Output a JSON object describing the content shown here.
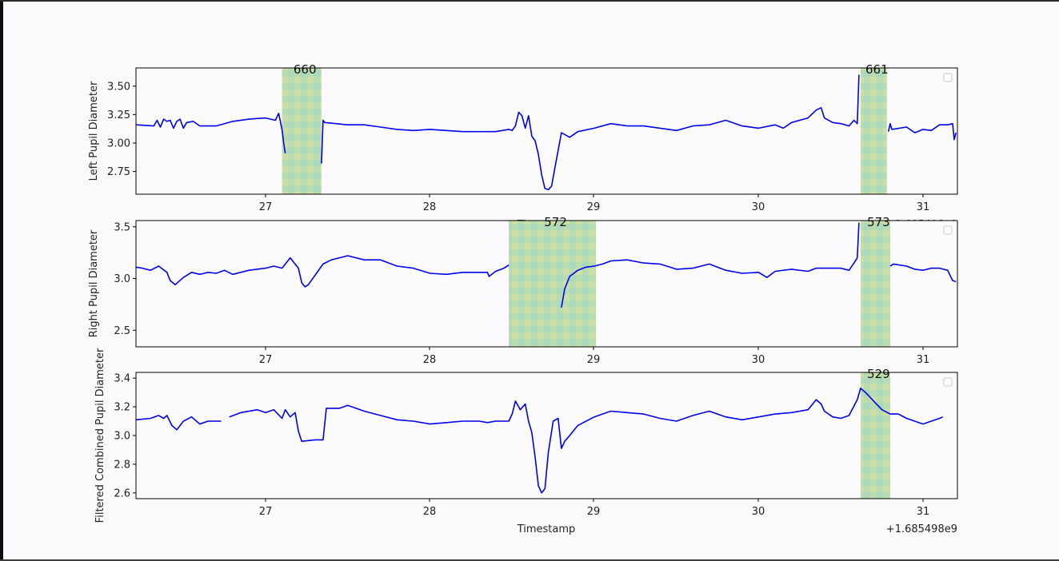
{
  "chart_data": [
    {
      "type": "line",
      "ylabel": "Left Pupil Diameter",
      "xlabel": "Timestamp",
      "offset_text": "+1.685498e9",
      "xlim": [
        26.2,
        31.2
      ],
      "ylim": [
        2.55,
        3.66
      ],
      "xticks": [
        "27",
        "28",
        "29",
        "30",
        "31"
      ],
      "yticks": [
        "2.75",
        "3.00",
        "3.25",
        "3.50"
      ],
      "legend": "top-right",
      "highlights": [
        {
          "label": "660",
          "x0": 27.1,
          "x1": 27.34
        },
        {
          "label": "661",
          "x0": 30.62,
          "x1": 30.78
        }
      ],
      "series": [
        {
          "color": "#0000ee",
          "x": [
            26.2,
            26.32,
            26.34,
            26.36,
            26.38,
            26.4,
            26.42,
            26.44,
            26.46,
            26.48,
            26.5,
            26.52,
            26.56,
            26.6,
            26.7,
            26.8,
            26.9,
            27.0,
            27.06,
            27.08,
            27.1,
            27.11,
            27.12
          ],
          "values": [
            3.16,
            3.15,
            3.2,
            3.14,
            3.21,
            3.19,
            3.2,
            3.13,
            3.19,
            3.21,
            3.13,
            3.18,
            3.19,
            3.15,
            3.15,
            3.19,
            3.21,
            3.22,
            3.2,
            3.26,
            3.12,
            3.0,
            2.91
          ]
        },
        {
          "color": "#0000ee",
          "x": [
            27.34,
            27.35,
            27.36,
            27.5,
            27.6,
            27.7,
            27.8,
            27.9,
            28.0,
            28.1,
            28.2,
            28.3,
            28.4,
            28.48,
            28.5,
            28.52,
            28.54,
            28.56,
            28.58,
            28.6,
            28.62,
            28.64,
            28.66,
            28.68,
            28.7,
            28.72,
            28.74,
            28.76,
            28.8,
            28.85,
            28.9,
            29.0,
            29.1,
            29.2,
            29.3,
            29.4,
            29.5,
            29.6,
            29.7,
            29.8,
            29.9,
            30.0,
            30.1,
            30.15,
            30.2,
            30.3,
            30.35,
            30.38,
            30.4,
            30.45,
            30.5,
            30.55,
            30.58,
            30.6,
            30.61
          ],
          "values": [
            2.82,
            3.2,
            3.18,
            3.16,
            3.16,
            3.14,
            3.12,
            3.11,
            3.12,
            3.11,
            3.1,
            3.1,
            3.1,
            3.12,
            3.11,
            3.15,
            3.27,
            3.24,
            3.13,
            3.24,
            3.06,
            3.02,
            2.9,
            2.72,
            2.6,
            2.59,
            2.62,
            2.78,
            3.09,
            3.05,
            3.1,
            3.13,
            3.17,
            3.15,
            3.15,
            3.13,
            3.11,
            3.15,
            3.16,
            3.2,
            3.15,
            3.13,
            3.16,
            3.13,
            3.18,
            3.22,
            3.29,
            3.31,
            3.22,
            3.18,
            3.17,
            3.15,
            3.2,
            3.17,
            3.6
          ]
        },
        {
          "color": "#0000ee",
          "x": [
            30.79,
            30.8,
            30.81,
            30.9,
            30.95,
            31.0,
            31.05,
            31.1,
            31.15,
            31.18,
            31.19,
            31.2
          ],
          "values": [
            3.1,
            3.17,
            3.12,
            3.14,
            3.09,
            3.12,
            3.11,
            3.16,
            3.16,
            3.17,
            3.03,
            3.09
          ]
        }
      ]
    },
    {
      "type": "line",
      "ylabel": "Right Pupil Diameter",
      "xlabel": "Timestamp",
      "offset_text": "+1.685498e9",
      "xlim": [
        26.2,
        31.2
      ],
      "ylim": [
        2.34,
        3.56
      ],
      "xticks": [
        "27",
        "28",
        "29",
        "30",
        "31"
      ],
      "yticks": [
        "2.5",
        "3.0",
        "3.5"
      ],
      "legend": "top-right",
      "highlights": [
        {
          "label": "572",
          "x0": 28.48,
          "x1": 29.01
        },
        {
          "label": "573",
          "x0": 30.62,
          "x1": 30.8
        }
      ],
      "series": [
        {
          "color": "#0000ee",
          "x": [
            26.2,
            26.25,
            26.3,
            26.35,
            26.4,
            26.42,
            26.45,
            26.5,
            26.55,
            26.6,
            26.65,
            26.7,
            26.75,
            26.8,
            26.9,
            27.0,
            27.05,
            27.1,
            27.15,
            27.2,
            27.22,
            27.24,
            27.26,
            27.35,
            27.4,
            27.5,
            27.6,
            27.7,
            27.8,
            27.9,
            28.0,
            28.1,
            28.2,
            28.3,
            28.35,
            28.36,
            28.4,
            28.45,
            28.48
          ],
          "values": [
            3.11,
            3.1,
            3.08,
            3.12,
            3.06,
            2.98,
            2.94,
            3.01,
            3.06,
            3.04,
            3.06,
            3.05,
            3.08,
            3.04,
            3.08,
            3.1,
            3.12,
            3.1,
            3.2,
            3.1,
            2.96,
            2.92,
            2.94,
            3.14,
            3.18,
            3.22,
            3.18,
            3.18,
            3.12,
            3.1,
            3.05,
            3.04,
            3.06,
            3.06,
            3.06,
            3.02,
            3.07,
            3.1,
            3.13
          ]
        },
        {
          "color": "#0000ee",
          "x": [
            28.8,
            28.82,
            28.85,
            28.9,
            28.95,
            29.0,
            29.05,
            29.1,
            29.2,
            29.3,
            29.4,
            29.5,
            29.6,
            29.7,
            29.8,
            29.9,
            30.0,
            30.05,
            30.1,
            30.2,
            30.3,
            30.35,
            30.4,
            30.5,
            30.55,
            30.58,
            30.6,
            30.61
          ],
          "values": [
            2.72,
            2.9,
            3.02,
            3.08,
            3.11,
            3.12,
            3.14,
            3.17,
            3.18,
            3.15,
            3.14,
            3.09,
            3.1,
            3.14,
            3.08,
            3.05,
            3.06,
            3.01,
            3.07,
            3.09,
            3.07,
            3.1,
            3.1,
            3.1,
            3.08,
            3.15,
            3.2,
            3.54
          ]
        },
        {
          "color": "#0000ee",
          "x": [
            30.8,
            30.82,
            30.9,
            30.95,
            31.0,
            31.05,
            31.1,
            31.15,
            31.18,
            31.2
          ],
          "values": [
            3.12,
            3.14,
            3.12,
            3.09,
            3.08,
            3.1,
            3.1,
            3.08,
            2.98,
            2.97
          ]
        }
      ]
    },
    {
      "type": "line",
      "ylabel": "Filtered Combined Pupil Diameter",
      "xlabel": "Timestamp",
      "offset_text": "+1.685498e9",
      "xlim": [
        26.2,
        31.2
      ],
      "ylim": [
        2.56,
        3.44
      ],
      "xticks": [
        "27",
        "28",
        "29",
        "30",
        "31"
      ],
      "yticks": [
        "2.6",
        "2.8",
        "3.0",
        "3.2",
        "3.4"
      ],
      "legend": "top-right",
      "highlights": [
        {
          "label": "529",
          "x0": 30.62,
          "x1": 30.8
        }
      ],
      "series": [
        {
          "color": "#0000ee",
          "x": [
            26.2,
            26.3,
            26.35,
            26.38,
            26.4,
            26.43,
            26.46,
            26.5,
            26.55,
            26.6,
            26.65,
            26.7,
            26.73
          ],
          "values": [
            3.11,
            3.12,
            3.14,
            3.12,
            3.14,
            3.07,
            3.04,
            3.1,
            3.13,
            3.08,
            3.1,
            3.1,
            3.1
          ]
        },
        {
          "color": "#0000ee",
          "x": [
            26.78,
            26.85,
            26.95,
            27.0,
            27.05,
            27.1,
            27.12,
            27.15,
            27.18,
            27.2,
            27.22,
            27.3,
            27.35,
            27.37,
            27.45,
            27.5,
            27.6,
            27.7,
            27.8,
            27.9,
            28.0,
            28.1,
            28.2,
            28.3,
            28.35,
            28.4,
            28.48,
            28.5,
            28.52,
            28.55,
            28.58,
            28.6,
            28.62,
            28.64,
            28.66,
            28.68,
            28.7,
            28.72,
            28.75,
            28.78,
            28.8,
            28.82,
            28.85,
            28.9,
            29.0,
            29.1,
            29.2,
            29.3,
            29.4,
            29.5,
            29.6,
            29.7,
            29.8,
            29.9,
            30.0,
            30.1,
            30.2,
            30.3,
            30.35,
            30.38,
            30.4,
            30.45,
            30.5,
            30.55,
            30.6,
            30.62,
            30.65,
            30.7,
            30.75,
            30.8,
            30.85,
            30.9,
            31.0,
            31.05,
            31.1,
            31.12
          ],
          "values": [
            3.13,
            3.16,
            3.18,
            3.16,
            3.18,
            3.12,
            3.18,
            3.13,
            3.16,
            3.03,
            2.96,
            2.97,
            2.97,
            3.19,
            3.19,
            3.21,
            3.17,
            3.14,
            3.11,
            3.1,
            3.08,
            3.09,
            3.1,
            3.1,
            3.09,
            3.1,
            3.1,
            3.15,
            3.24,
            3.18,
            3.22,
            3.1,
            3.02,
            2.85,
            2.65,
            2.6,
            2.63,
            2.88,
            3.1,
            3.12,
            2.91,
            2.96,
            3.0,
            3.07,
            3.13,
            3.17,
            3.16,
            3.15,
            3.12,
            3.1,
            3.14,
            3.17,
            3.13,
            3.11,
            3.13,
            3.15,
            3.16,
            3.18,
            3.25,
            3.22,
            3.17,
            3.13,
            3.12,
            3.14,
            3.25,
            3.33,
            3.3,
            3.24,
            3.18,
            3.15,
            3.15,
            3.12,
            3.08,
            3.1,
            3.12,
            3.13
          ]
        }
      ]
    }
  ]
}
